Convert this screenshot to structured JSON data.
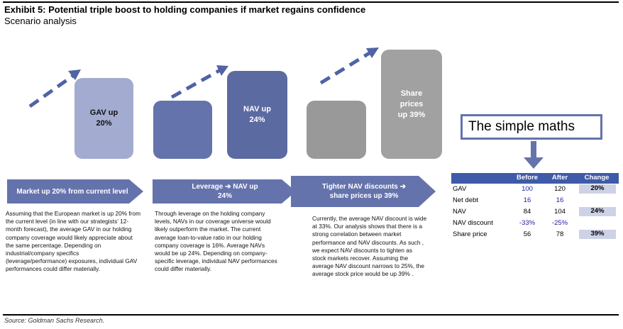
{
  "header": {
    "title": "Exhibit 5: Potential triple boost to holding companies if market regains confidence",
    "subtitle": "Scenario analysis"
  },
  "boxes": {
    "gav": "GAV up\n20%",
    "nav": "NAV up\n24%",
    "share": "Share\nprices\nup 39%"
  },
  "banners": {
    "market": "Market up 20% from current level",
    "leverage": "Leverage ➔ NAV up 24%",
    "discount": "Tighter NAV discounts ➔ share prices up 39%"
  },
  "paragraphs": {
    "p1": "Assuming that the European market is up 20% from the current level (in line with our strategists’ 12-month forecast), the average GAV in our holding company coverage would likely appreciate about the same percentage. Depending on industrial/company specifics (leverage/performance) exposures, individual GAV performances could differ materially.",
    "p2": "Through leverage on the holding company levels, NAVs in our coverage universe would likely outperform the market. The current average loan-to-value ratio in our holding company coverage is 16%. Average NAVs would be up 24%. Depending on company-specific leverage, individual NAV performances could differ materially.",
    "p3": "Currently, the average NAV discount is wide at 33%. Our analysis shows that there is a strong correlation between market performance and NAV discounts. As such , we expect NAV discounts to tighten as stock markets recover. Assuming the average NAV discount narrows to 25%, the average stock price would be up 39% ."
  },
  "maths": {
    "label": "The simple maths"
  },
  "table": {
    "headers": {
      "item": "",
      "before": "Before",
      "after": "After",
      "change": "Change"
    },
    "rows": [
      {
        "label": "GAV",
        "before": "100",
        "after": "120",
        "change": "20%"
      },
      {
        "label": "Net debt",
        "before": "16",
        "after": "16",
        "change": ""
      },
      {
        "label": "NAV",
        "before": "84",
        "after": "104",
        "change": "24%"
      },
      {
        "label": "NAV discount",
        "before": "-33%",
        "after": "-25%",
        "change": ""
      },
      {
        "label": "Share price",
        "before": "56",
        "after": "78",
        "change": "39%"
      }
    ]
  },
  "footer": {
    "source": "Source: Goldman Sachs Research."
  },
  "colors": {
    "banner": "#6573ac",
    "arrow": "#4f63a6",
    "table_header": "#3f5aa8",
    "change_cell": "#cdd2e6"
  }
}
